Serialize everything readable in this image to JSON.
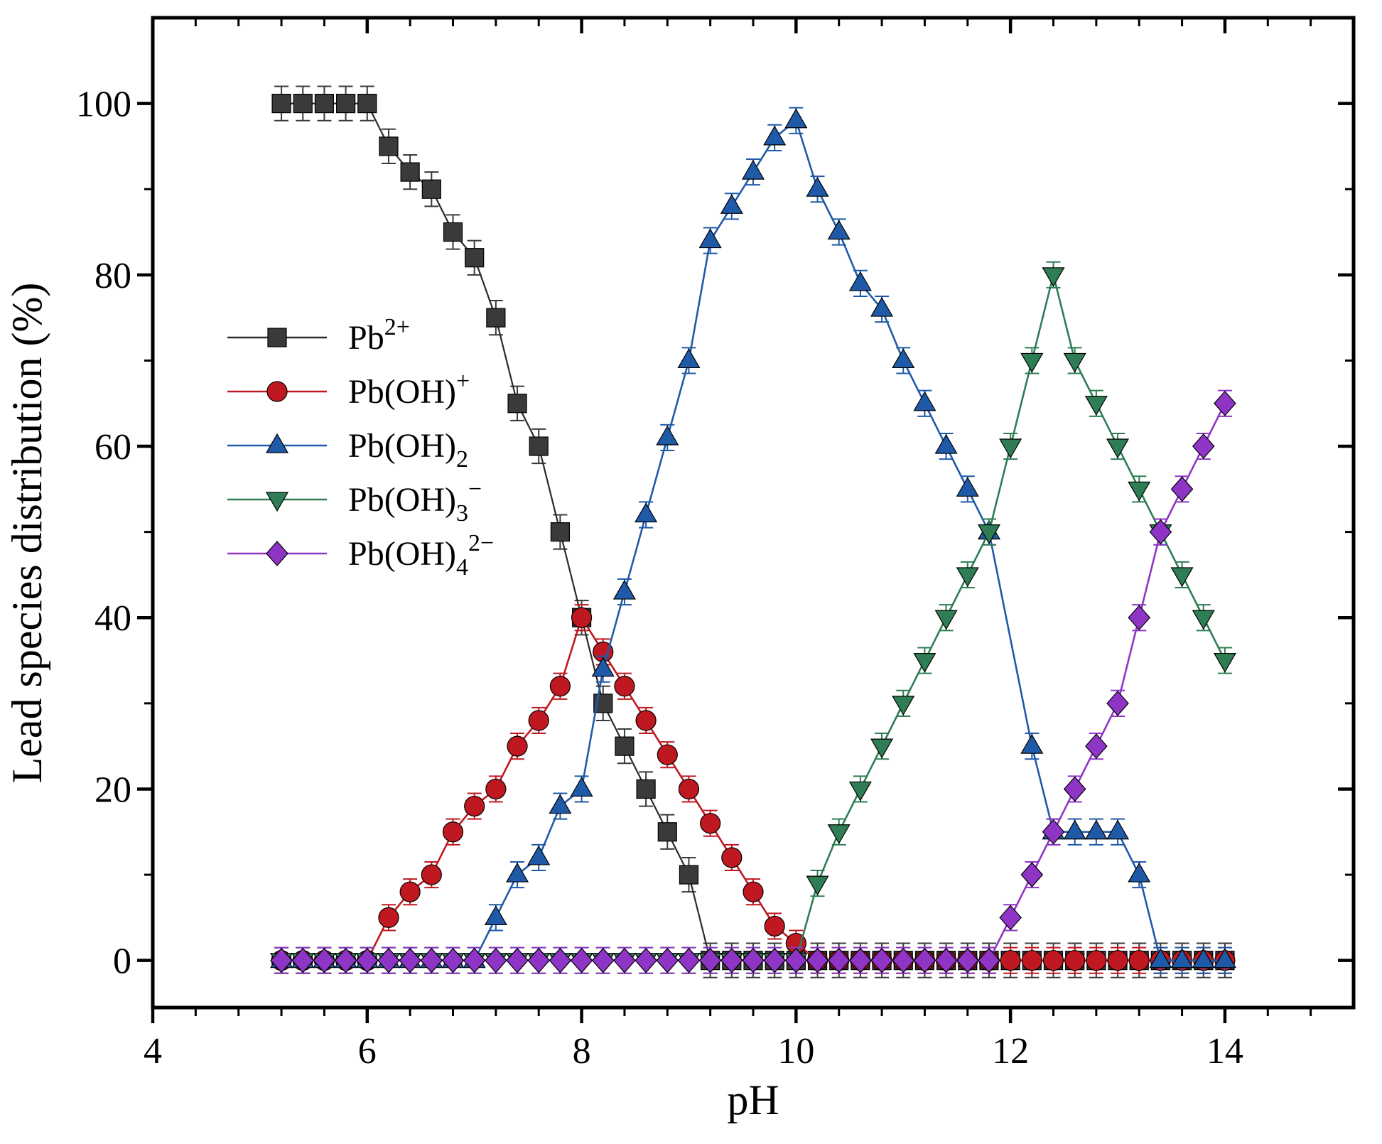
{
  "figure": {
    "background": "#ffffff",
    "frame_color": "#000000"
  },
  "chart_data": {
    "type": "line",
    "title": "",
    "xlabel": "pH",
    "ylabel": "Lead species distribution (%)",
    "xlim": [
      4,
      15.2
    ],
    "ylim": [
      -5.5,
      110
    ],
    "xticks": [
      4,
      6,
      8,
      10,
      12,
      14
    ],
    "yticks": [
      0,
      20,
      40,
      60,
      80,
      100
    ],
    "x_minor_step": 0.4,
    "y_minor_step": 10,
    "grid": false,
    "legend_position": "upper-left-inside",
    "error_bars": true,
    "x": [
      5.2,
      5.4,
      5.6,
      5.8,
      6,
      6.2,
      6.4,
      6.6,
      6.8,
      7,
      7.2,
      7.4,
      7.6,
      7.8,
      8,
      8.2,
      8.4,
      8.6,
      8.8,
      9,
      9.2,
      9.4,
      9.6,
      9.8,
      10,
      10.2,
      10.4,
      10.6,
      10.8,
      11,
      11.2,
      11.4,
      11.6,
      11.8,
      12,
      12.2,
      12.4,
      12.6,
      12.8,
      13,
      13.2,
      13.4,
      13.6,
      13.8,
      14
    ],
    "series": [
      {
        "id": "pb2plus",
        "label": "Pb²⁺",
        "label_runs": [
          {
            "t": "Pb"
          },
          {
            "t": "2+",
            "pos": "sup"
          }
        ],
        "color": "#3a3a3a",
        "line_color": "#2a2a2a",
        "marker": "square",
        "err": 2,
        "values": [
          100,
          100,
          100,
          100,
          100,
          95,
          92,
          90,
          85,
          82,
          75,
          65,
          60,
          50,
          40,
          30,
          25,
          20,
          15,
          10,
          0,
          0,
          0,
          0,
          0,
          0,
          0,
          0,
          0,
          0,
          0,
          0,
          0,
          0,
          0,
          0,
          0,
          0,
          0,
          0,
          0,
          0,
          0,
          0,
          0
        ]
      },
      {
        "id": "pboh_plus",
        "label": "Pb(OH)⁺",
        "label_runs": [
          {
            "t": "Pb(OH)"
          },
          {
            "t": "+",
            "pos": "sup"
          }
        ],
        "color": "#c01820",
        "marker": "circle",
        "err": 1.5,
        "values": [
          0,
          0,
          0,
          0,
          0,
          5,
          8,
          10,
          15,
          18,
          20,
          25,
          28,
          32,
          40,
          36,
          32,
          28,
          24,
          20,
          16,
          12,
          8,
          4,
          2,
          0,
          0,
          0,
          0,
          0,
          0,
          0,
          0,
          0,
          0,
          0,
          0,
          0,
          0,
          0,
          0,
          0,
          0,
          0,
          0
        ]
      },
      {
        "id": "pboh2",
        "label": "Pb(OH)₂",
        "label_runs": [
          {
            "t": "Pb(OH)"
          },
          {
            "t": "2",
            "pos": "sub"
          }
        ],
        "color": "#1f5aa8",
        "marker": "triangle-up",
        "err": 1.5,
        "x": [
          5.2,
          5.4,
          5.6,
          5.8,
          6,
          6.2,
          6.4,
          6.6,
          6.8,
          7,
          7.2,
          7.4,
          7.6,
          7.8,
          8,
          8.2,
          8.4,
          8.6,
          8.8,
          9,
          9.2,
          9.4,
          9.6,
          9.8,
          10,
          10.2,
          10.4,
          10.6,
          10.8,
          11,
          11.2,
          11.4,
          11.6,
          11.8,
          12.2,
          12.4,
          12.6,
          12.8,
          13,
          13.2,
          13.4,
          13.6,
          13.8,
          14
        ],
        "values": [
          0,
          0,
          0,
          0,
          0,
          0,
          0,
          0,
          0,
          0,
          5,
          10,
          12,
          18,
          20,
          34,
          43,
          52,
          61,
          70,
          84,
          88,
          92,
          96,
          98,
          90,
          85,
          79,
          76,
          70,
          65,
          60,
          55,
          50,
          25,
          15,
          15,
          15,
          15,
          10,
          0,
          0,
          0,
          0
        ]
      },
      {
        "id": "pboh3_minus",
        "label": "Pb(OH)₃⁻",
        "label_runs": [
          {
            "t": "Pb(OH)"
          },
          {
            "t": "3",
            "pos": "sub"
          },
          {
            "t": "−",
            "pos": "sup"
          }
        ],
        "color": "#2e7d54",
        "marker": "triangle-down",
        "err": 1.5,
        "values": [
          0,
          0,
          0,
          0,
          0,
          0,
          0,
          0,
          0,
          0,
          0,
          0,
          0,
          0,
          0,
          0,
          0,
          0,
          0,
          0,
          0,
          0,
          0,
          0,
          0,
          9,
          15,
          20,
          25,
          30,
          35,
          40,
          45,
          50,
          60,
          70,
          80,
          70,
          65,
          60,
          55,
          50,
          45,
          40,
          35
        ]
      },
      {
        "id": "pboh4_2minus",
        "label": "Pb(OH)₄²⁻",
        "label_runs": [
          {
            "t": "Pb(OH)"
          },
          {
            "t": "4",
            "pos": "sub"
          },
          {
            "t": "2−",
            "pos": "sup"
          }
        ],
        "color": "#8e35c6",
        "marker": "diamond",
        "err": 1.5,
        "values": [
          0,
          0,
          0,
          0,
          0,
          0,
          0,
          0,
          0,
          0,
          0,
          0,
          0,
          0,
          0,
          0,
          0,
          0,
          0,
          0,
          0,
          0,
          0,
          0,
          0,
          0,
          0,
          0,
          0,
          0,
          0,
          0,
          0,
          0,
          5,
          10,
          15,
          20,
          25,
          30,
          40,
          50,
          55,
          60,
          65
        ]
      }
    ]
  }
}
